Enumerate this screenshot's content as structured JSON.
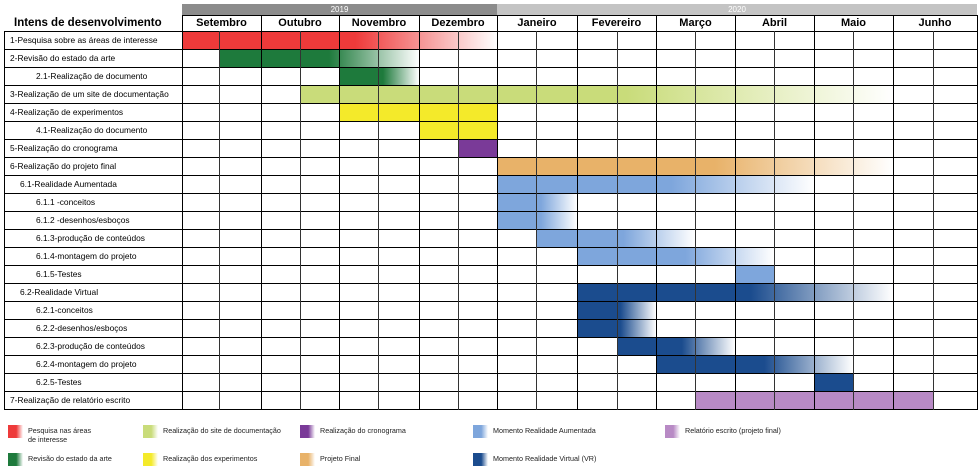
{
  "header": {
    "title": "Intens de desenvolvimento",
    "years": [
      "2019",
      "2020"
    ],
    "months": [
      "Setembro",
      "Outubro",
      "Novembro",
      "Dezembro",
      "Janeiro",
      "Fevereiro",
      "Março",
      "Abril",
      "Maio",
      "Junho"
    ]
  },
  "tasks": [
    {
      "label": "1-Pesquisa sobre as áreas de interesse",
      "indent": 0,
      "category": "pesquisa",
      "start": 0,
      "end": 8
    },
    {
      "label": "2-Revisão do estado da arte",
      "indent": 0,
      "category": "revisao",
      "start": 1,
      "end": 6
    },
    {
      "label": "2.1-Realização de documento",
      "indent": 2,
      "category": "revisao",
      "start": 4,
      "end": 6
    },
    {
      "label": "3-Realização de um site de documentação",
      "indent": 0,
      "category": "site",
      "start": 3,
      "end": 18
    },
    {
      "label": "4-Realização de experimentos",
      "indent": 0,
      "category": "experimentos",
      "start": 4,
      "end": 8
    },
    {
      "label": "4.1-Realização do documento",
      "indent": 2,
      "category": "experimentos",
      "start": 6,
      "end": 8
    },
    {
      "label": "5-Realização do cronograma",
      "indent": 0,
      "category": "cronograma",
      "start": 7,
      "end": 8
    },
    {
      "label": "6-Realização do projeto final",
      "indent": 0,
      "category": "projeto",
      "start": 8,
      "end": 18
    },
    {
      "label": "6.1-Realidade Aumentada",
      "indent": 1,
      "category": "ra",
      "start": 8,
      "end": 16
    },
    {
      "label": "6.1.1 -conceitos",
      "indent": 2,
      "category": "ra",
      "start": 8,
      "end": 10
    },
    {
      "label": "6.1.2 -desenhos/esboços",
      "indent": 2,
      "category": "ra",
      "start": 8,
      "end": 10
    },
    {
      "label": "6.1.3-produção de conteúdos",
      "indent": 2,
      "category": "ra",
      "start": 9,
      "end": 13
    },
    {
      "label": "6.1.4-montagem do projeto",
      "indent": 2,
      "category": "ra",
      "start": 10,
      "end": 15
    },
    {
      "label": "6.1.5-Testes",
      "indent": 2,
      "category": "ra_solid",
      "start": 14,
      "end": 15
    },
    {
      "label": "6.2-Realidade Virtual",
      "indent": 1,
      "category": "rv",
      "start": 10,
      "end": 18
    },
    {
      "label": "6.2.1-conceitos",
      "indent": 2,
      "category": "rv",
      "start": 10,
      "end": 12
    },
    {
      "label": "6.2.2-desenhos/esboços",
      "indent": 2,
      "category": "rv",
      "start": 10,
      "end": 12
    },
    {
      "label": "6.2.3-produção de conteúdos",
      "indent": 2,
      "category": "rv",
      "start": 11,
      "end": 14
    },
    {
      "label": "6.2.4-montagem do projeto",
      "indent": 2,
      "category": "rv",
      "start": 12,
      "end": 17
    },
    {
      "label": "6.2.5-Testes",
      "indent": 2,
      "category": "rv_solid",
      "start": 16,
      "end": 17
    },
    {
      "label": "7-Realização de relatório escrito",
      "indent": 0,
      "category": "relatorio",
      "start": 13,
      "end": 19
    }
  ],
  "categories": {
    "pesquisa": {
      "color": "#ee3a3a",
      "fade": true
    },
    "revisao": {
      "color": "#1e7a3c",
      "fade": true
    },
    "site": {
      "color": "#c9dc7a",
      "fade": true
    },
    "experimentos": {
      "color": "#f4ea2a",
      "fade": false
    },
    "cronograma": {
      "color": "#7a3a98",
      "fade": false
    },
    "projeto": {
      "color": "#e8b269",
      "fade": true
    },
    "ra": {
      "color": "#7ea6dc",
      "fade": true
    },
    "ra_solid": {
      "color": "#7ea6dc",
      "fade": false
    },
    "rv": {
      "color": "#1b4c8e",
      "fade": true
    },
    "rv_solid": {
      "color": "#1b4c8e",
      "fade": false
    },
    "relatorio": {
      "color": "#b88ac5",
      "fade": false
    }
  },
  "legend": [
    {
      "label": "Pesquisa nas áreas de interesse",
      "color": "#ee3a3a",
      "icon": "red-swatch-icon"
    },
    {
      "label": "Realização do site de documentação",
      "color": "#c9dc7a",
      "icon": "lime-swatch-icon"
    },
    {
      "label": "Realização do cronograma",
      "color": "#7a3a98",
      "icon": "purple-swatch-icon"
    },
    {
      "label": "Momento Realidade Aumentada",
      "color": "#7ea6dc",
      "icon": "light-blue-swatch-icon"
    },
    {
      "label": "Relatório escrito (projeto final)",
      "color": "#b88ac5",
      "icon": "lilac-swatch-icon"
    },
    {
      "label": "Revisão do estado da arte",
      "color": "#1e7a3c",
      "icon": "green-swatch-icon"
    },
    {
      "label": "Realização dos experimentos",
      "color": "#f4ea2a",
      "icon": "yellow-swatch-icon"
    },
    {
      "label": "Projeto Final",
      "color": "#e8b269",
      "icon": "orange-swatch-icon"
    },
    {
      "label": "Momento Realidade Virtual (VR)",
      "color": "#1b4c8e",
      "icon": "dark-blue-swatch-icon"
    }
  ]
}
